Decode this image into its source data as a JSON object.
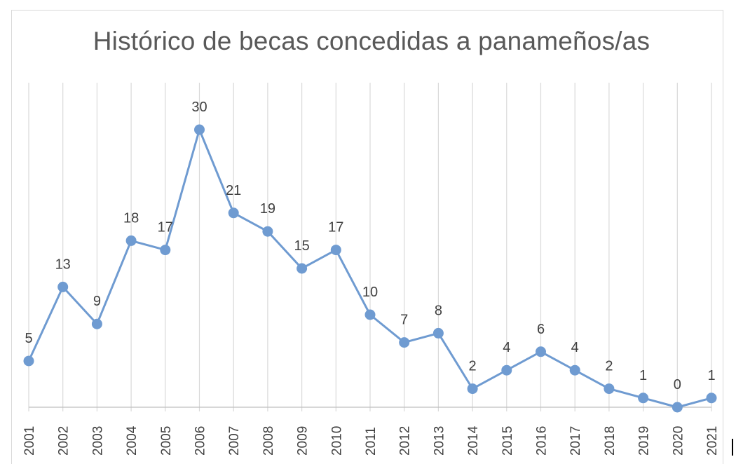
{
  "chart_data": {
    "type": "line",
    "title": "Histórico de becas concedidas a panameños/as",
    "x": [
      "2001",
      "2002",
      "2003",
      "2004",
      "2005",
      "2006",
      "2007",
      "2008",
      "2009",
      "2010",
      "2011",
      "2012",
      "2013",
      "2014",
      "2015",
      "2016",
      "2017",
      "2018",
      "2019",
      "2020",
      "2021"
    ],
    "series": [
      {
        "values": [
          5,
          13,
          9,
          18,
          17,
          30,
          21,
          19,
          15,
          17,
          10,
          7,
          8,
          2,
          4,
          6,
          4,
          2,
          1,
          0,
          1
        ]
      }
    ],
    "ylim": [
      0,
      35
    ],
    "grid": "vertical",
    "legend": "none",
    "colors": {
      "series": "#6f9bd1",
      "grid": "#d9d9d9",
      "text": "#404040",
      "title": "#595959"
    }
  }
}
